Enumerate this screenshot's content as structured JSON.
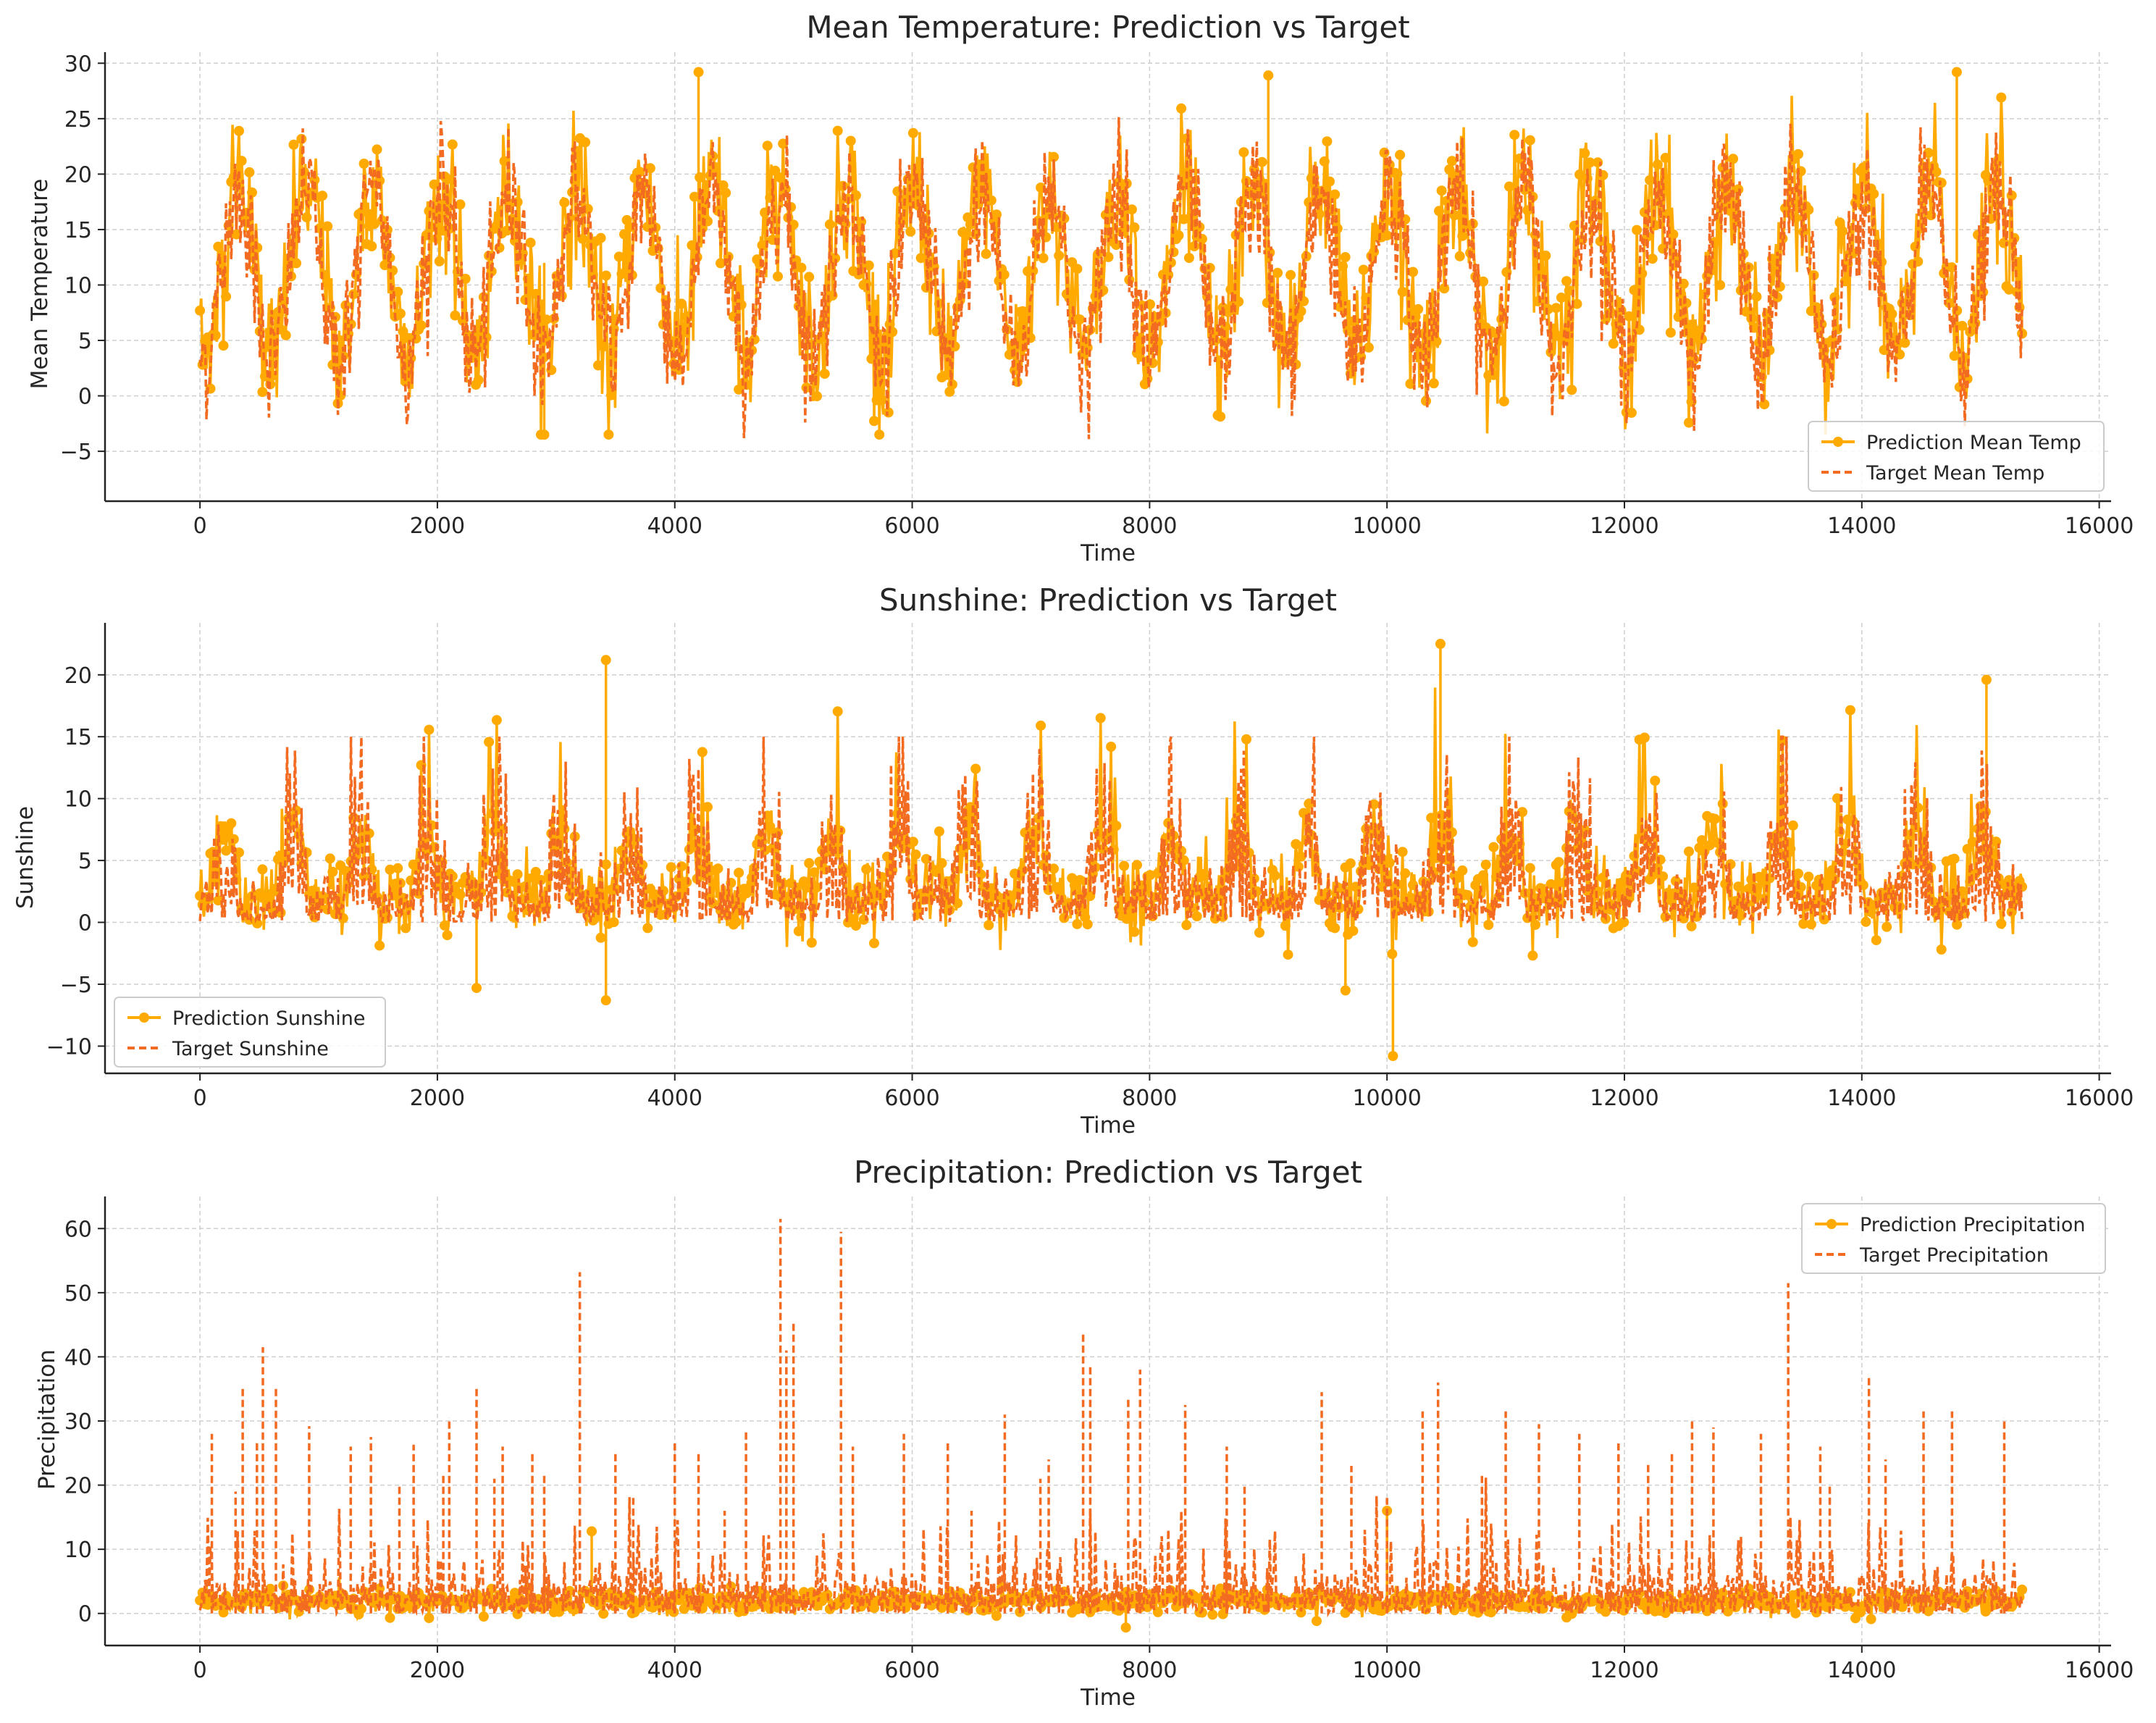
{
  "colors": {
    "prediction": "#FFAA00",
    "target": "#F26B21",
    "grid": "#cfcfcf",
    "axis": "#222222",
    "text": "#262626"
  },
  "chart_data": [
    {
      "type": "line",
      "title": "Mean Temperature: Prediction vs Target",
      "xlabel": "Time",
      "ylabel": "Mean Temperature",
      "xlim": [
        -800,
        16100
      ],
      "ylim": [
        -9.5,
        31
      ],
      "xticks": [
        0,
        2000,
        4000,
        6000,
        8000,
        10000,
        12000,
        14000,
        16000
      ],
      "yticks": [
        -5,
        0,
        5,
        10,
        15,
        20,
        25,
        30
      ],
      "ytick_labels": [
        "−5",
        "0",
        "5",
        "10",
        "15",
        "20",
        "25",
        "30"
      ],
      "grid": true,
      "legend_position": "lower-right",
      "series": [
        {
          "name": "Prediction Mean Temp",
          "style": "solid-marker",
          "color": "#FFAA00",
          "x_range": [
            0,
            15350
          ],
          "cycle_period": 570,
          "mean": 11.5,
          "amplitude": 7.5,
          "noise": 4.0,
          "min": -3.5,
          "max": 29.2
        },
        {
          "name": "Target Mean Temp",
          "style": "dashed",
          "color": "#F26B21",
          "x_range": [
            0,
            15350
          ],
          "cycle_period": 570,
          "mean": 11.0,
          "amplitude": 7.5,
          "noise": 3.5,
          "min": -7.5,
          "max": 28.2
        }
      ]
    },
    {
      "type": "line",
      "title": "Sunshine: Prediction vs Target",
      "xlabel": "Time",
      "ylabel": "Sunshine",
      "xlim": [
        -800,
        16100
      ],
      "ylim": [
        -12.2,
        24.2
      ],
      "xticks": [
        0,
        2000,
        4000,
        6000,
        8000,
        10000,
        12000,
        14000,
        16000
      ],
      "yticks": [
        -10,
        -5,
        0,
        5,
        10,
        15,
        20
      ],
      "ytick_labels": [
        "−10",
        "−5",
        "0",
        "5",
        "10",
        "15",
        "20"
      ],
      "grid": true,
      "legend_position": "lower-left",
      "series": [
        {
          "name": "Prediction Sunshine",
          "style": "solid-marker",
          "color": "#FFAA00",
          "x_range": [
            0,
            15350
          ],
          "cycle_period": 570,
          "min": -10.8,
          "max": 22.5
        },
        {
          "name": "Target Sunshine",
          "style": "dashed",
          "color": "#F26B21",
          "x_range": [
            0,
            15350
          ],
          "cycle_period": 570,
          "min": 0,
          "max": 15.0
        }
      ]
    },
    {
      "type": "line",
      "title": "Precipitation: Prediction vs Target",
      "xlabel": "Time",
      "ylabel": "Precipitation",
      "xlim": [
        -800,
        16100
      ],
      "ylim": [
        -5,
        65
      ],
      "xticks": [
        0,
        2000,
        4000,
        6000,
        8000,
        10000,
        12000,
        14000,
        16000
      ],
      "yticks": [
        0,
        10,
        20,
        30,
        40,
        50,
        60
      ],
      "ytick_labels": [
        "0",
        "10",
        "20",
        "30",
        "40",
        "50",
        "60"
      ],
      "grid": true,
      "legend_position": "upper-right",
      "series": [
        {
          "name": "Prediction Precipitation",
          "style": "solid-marker",
          "color": "#FFAA00",
          "x_range": [
            0,
            15350
          ],
          "mean": 1.8,
          "min": -2.2,
          "max": 16
        },
        {
          "name": "Target Precipitation",
          "style": "dashed",
          "color": "#F26B21",
          "x_range": [
            0,
            15350
          ],
          "min": 0,
          "max": 61.5
        },
        {
          "name": "Target Precipitation peaks",
          "legend": false,
          "points": [
            [
              100,
              28
            ],
            [
              300,
              19
            ],
            [
              360,
              35
            ],
            [
              480,
              27
            ],
            [
              530,
              41.5
            ],
            [
              640,
              35.3
            ],
            [
              920,
              29.2
            ],
            [
              1270,
              26
            ],
            [
              1440,
              27.5
            ],
            [
              1680,
              20
            ],
            [
              1800,
              26.3
            ],
            [
              2050,
              21.5
            ],
            [
              2100,
              30.5
            ],
            [
              2330,
              35.5
            ],
            [
              2480,
              21
            ],
            [
              2550,
              26
            ],
            [
              2800,
              25
            ],
            [
              2900,
              21.5
            ],
            [
              3200,
              53.2
            ],
            [
              3500,
              25
            ],
            [
              3650,
              18
            ],
            [
              4000,
              26.5
            ],
            [
              4200,
              25
            ],
            [
              4420,
              16
            ],
            [
              4600,
              28.5
            ],
            [
              4890,
              61.5
            ],
            [
              4940,
              41
            ],
            [
              5000,
              45.5
            ],
            [
              5400,
              59.5
            ],
            [
              5500,
              26
            ],
            [
              5930,
              28
            ],
            [
              6300,
              26.5
            ],
            [
              6500,
              16
            ],
            [
              6780,
              31
            ],
            [
              7080,
              21
            ],
            [
              7150,
              24
            ],
            [
              7440,
              44
            ],
            [
              7500,
              38.5
            ],
            [
              7820,
              33.5
            ],
            [
              7920,
              38
            ],
            [
              8300,
              32.5
            ],
            [
              8650,
              26
            ],
            [
              8800,
              20
            ],
            [
              9450,
              34.5
            ],
            [
              9700,
              23
            ],
            [
              10000,
              18
            ],
            [
              10300,
              31.5
            ],
            [
              10430,
              36
            ],
            [
              10800,
              22
            ],
            [
              11000,
              31.5
            ],
            [
              11280,
              29.5
            ],
            [
              11620,
              28
            ],
            [
              11950,
              26.5
            ],
            [
              12200,
              23.5
            ],
            [
              12400,
              25
            ],
            [
              12570,
              30.5
            ],
            [
              12750,
              29
            ],
            [
              13150,
              28
            ],
            [
              13380,
              51.5
            ],
            [
              13650,
              26
            ],
            [
              13730,
              20
            ],
            [
              14060,
              36.8
            ],
            [
              14200,
              24
            ],
            [
              14520,
              31.5
            ],
            [
              14760,
              31.5
            ],
            [
              15200,
              30.5
            ]
          ]
        }
      ]
    }
  ]
}
